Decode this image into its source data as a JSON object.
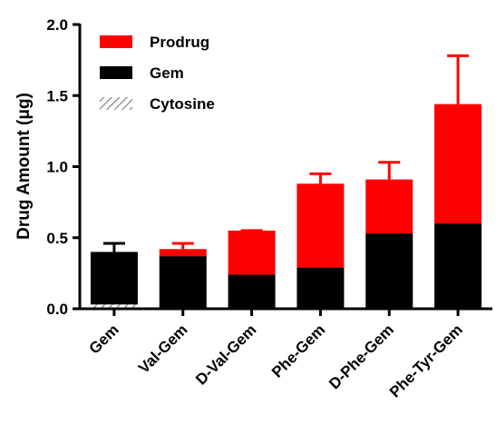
{
  "chart_data": {
    "type": "bar",
    "stacked": true,
    "categories": [
      "Gem",
      "Val-Gem",
      "D-Val-Gem",
      "Phe-Gem",
      "D-Phe-Gem",
      "Phe-Tyr-Gem"
    ],
    "series": [
      {
        "name": "Cytosine",
        "values": [
          0.03,
          0,
          0,
          0,
          0,
          0
        ],
        "color": "#9a9a9a",
        "pattern": "hatched"
      },
      {
        "name": "Gem",
        "values": [
          0.37,
          0.37,
          0.24,
          0.29,
          0.53,
          0.6
        ],
        "color": "#000000"
      },
      {
        "name": "Prodrug",
        "values": [
          0,
          0.05,
          0.31,
          0.59,
          0.38,
          0.84
        ],
        "color": "#ff0000"
      }
    ],
    "error_bars": [
      {
        "top": 0.4,
        "upper": 0.46,
        "color": "#000000"
      },
      {
        "top": 0.42,
        "upper": 0.46,
        "color": "#ff0000"
      },
      {
        "top": 0.55,
        "upper": 0.55,
        "color": "#ff0000"
      },
      {
        "top": 0.88,
        "upper": 0.95,
        "color": "#ff0000"
      },
      {
        "top": 0.91,
        "upper": 1.03,
        "color": "#ff0000"
      },
      {
        "top": 1.44,
        "upper": 1.78,
        "color": "#ff0000"
      }
    ],
    "ylabel": "Drug Amount (μg)",
    "ylim": [
      0,
      2.0
    ],
    "yticks": [
      "0.0",
      "0.5",
      "1.0",
      "1.5",
      "2.0"
    ],
    "grid": false,
    "legend_position": "top-left",
    "legend_order": [
      "Prodrug",
      "Gem",
      "Cytosine"
    ]
  }
}
